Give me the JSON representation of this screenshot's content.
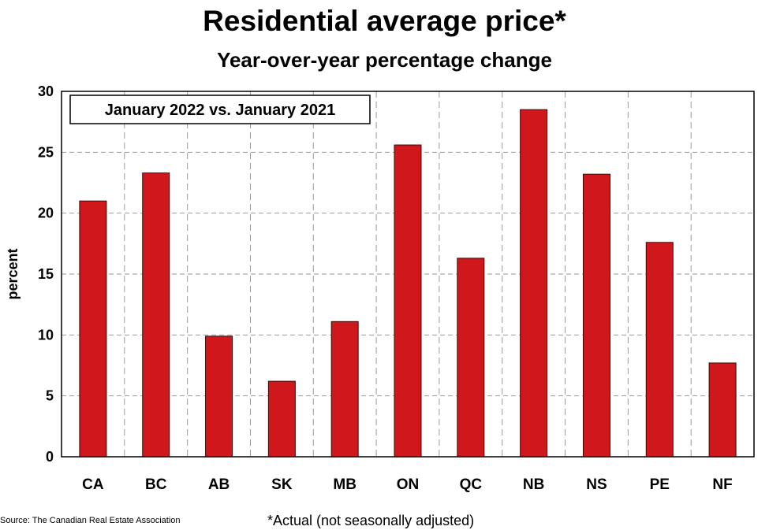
{
  "chart_data": {
    "type": "bar",
    "title": "Residential average price*",
    "subtitle": "Year-over-year percentage change",
    "ylabel": "percent",
    "xlabel": "",
    "categories": [
      "CA",
      "BC",
      "AB",
      "SK",
      "MB",
      "ON",
      "QC",
      "NB",
      "NS",
      "PE",
      "NF"
    ],
    "series": [
      {
        "name": "January 2022 vs. January 2021",
        "values": [
          21.0,
          23.3,
          9.9,
          6.2,
          11.1,
          25.6,
          16.3,
          28.5,
          23.2,
          17.6,
          7.7
        ]
      }
    ],
    "ylim": [
      0,
      30
    ],
    "yticks": [
      0,
      5,
      10,
      15,
      20,
      25,
      30
    ],
    "grid": true,
    "legend_placement": "top-left",
    "bar_color": "#d0181c"
  },
  "footer": {
    "source": "Source: The Canadian Real Estate Association",
    "footnote": "*Actual (not seasonally adjusted)"
  }
}
